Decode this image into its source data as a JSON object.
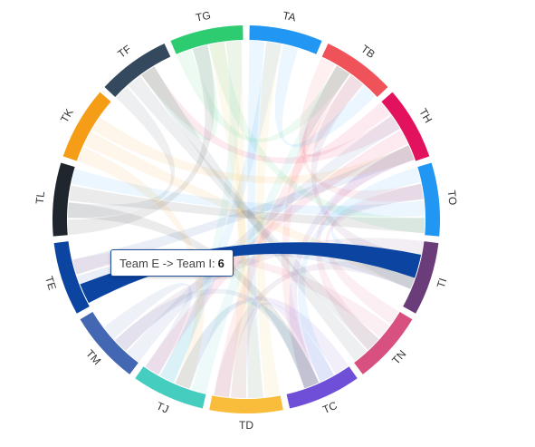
{
  "chart_data": {
    "type": "chord",
    "groups": [
      {
        "label": "TA",
        "color": "#2196f3"
      },
      {
        "label": "TB",
        "color": "#f0525a"
      },
      {
        "label": "TH",
        "color": "#e2125e"
      },
      {
        "label": "TO",
        "color": "#2196f3"
      },
      {
        "label": "TI",
        "color": "#6a3d7a"
      },
      {
        "label": "TN",
        "color": "#d8507f"
      },
      {
        "label": "TC",
        "color": "#6f4fd8"
      },
      {
        "label": "TD",
        "color": "#f9bd3b"
      },
      {
        "label": "TJ",
        "color": "#45cdc0"
      },
      {
        "label": "TM",
        "color": "#4467b4"
      },
      {
        "label": "TE",
        "color": "#0b44a1"
      },
      {
        "label": "TL",
        "color": "#1f262e"
      },
      {
        "label": "TK",
        "color": "#f59d17"
      },
      {
        "label": "TF",
        "color": "#34495e"
      },
      {
        "label": "TG",
        "color": "#2ecc71"
      }
    ],
    "highlight": {
      "source": "Team E",
      "target": "Team I",
      "value": 6
    }
  },
  "tooltip": {
    "text": "Team E -> Team I:",
    "value": "6"
  }
}
